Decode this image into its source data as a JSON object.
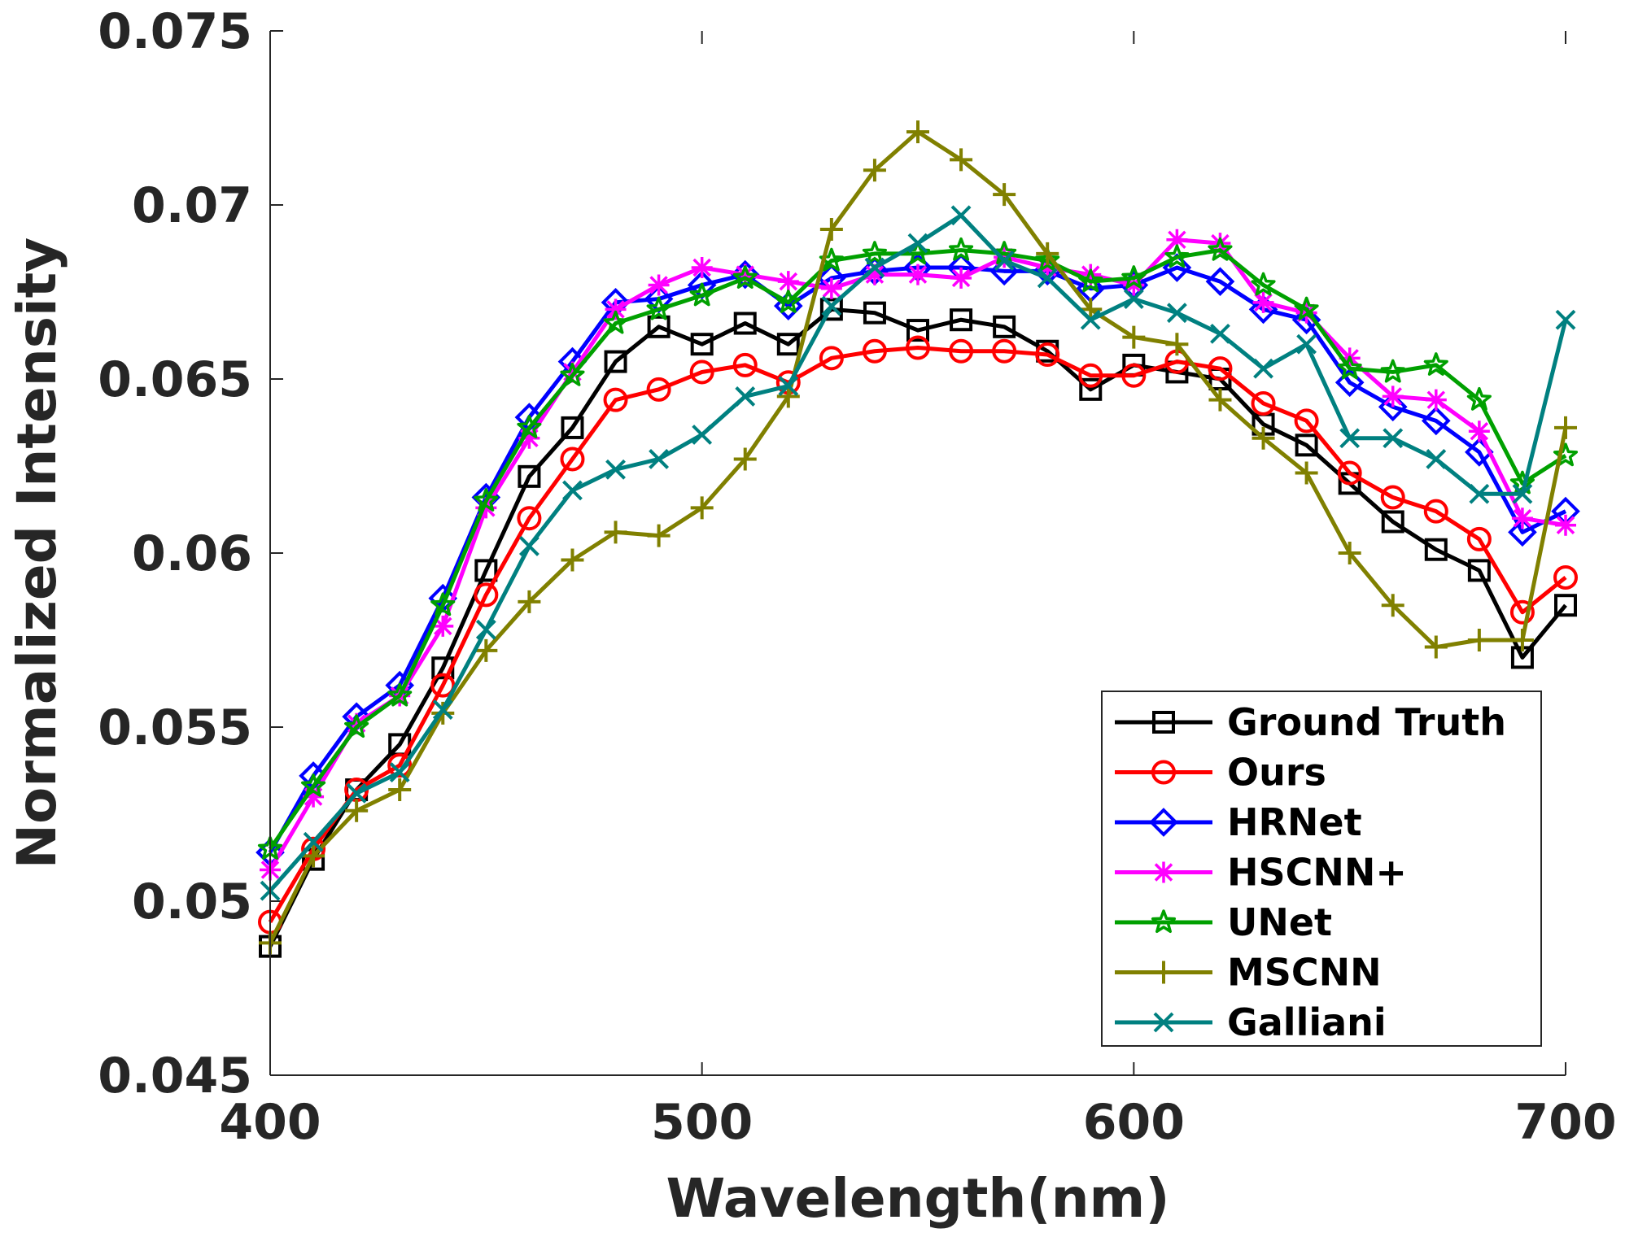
{
  "chart_data": {
    "type": "line",
    "title": "",
    "xlabel": "Wavelength(nm)",
    "ylabel": "Normalized Intensity",
    "xlim": [
      400,
      700
    ],
    "ylim": [
      0.045,
      0.075
    ],
    "xticks": [
      400,
      500,
      600,
      700
    ],
    "xtick_labels": [
      "400",
      "500",
      "600",
      "700"
    ],
    "yticks": [
      0.045,
      0.05,
      0.055,
      0.06,
      0.065,
      0.07,
      0.075
    ],
    "ytick_labels": [
      "0.045",
      "0.05",
      "0.055",
      "0.06",
      "0.065",
      "0.07",
      "0.075"
    ],
    "legend_position": "bottom-right",
    "grid": false,
    "x": [
      400,
      410,
      420,
      430,
      440,
      450,
      460,
      470,
      480,
      490,
      500,
      510,
      520,
      530,
      540,
      550,
      560,
      570,
      580,
      590,
      600,
      610,
      620,
      630,
      640,
      650,
      660,
      670,
      680,
      690,
      700
    ],
    "series": [
      {
        "name": "Ground Truth",
        "color": "#000000",
        "marker": "square",
        "values": [
          0.0487,
          0.0512,
          0.0532,
          0.0545,
          0.0567,
          0.0595,
          0.0622,
          0.0636,
          0.0655,
          0.0665,
          0.066,
          0.0666,
          0.066,
          0.067,
          0.0669,
          0.0664,
          0.0667,
          0.0665,
          0.0658,
          0.0647,
          0.0654,
          0.0652,
          0.065,
          0.0637,
          0.0631,
          0.062,
          0.0609,
          0.0601,
          0.0595,
          0.057,
          0.0585
        ]
      },
      {
        "name": "Ours",
        "color": "#ff0000",
        "marker": "circle",
        "values": [
          0.0494,
          0.0515,
          0.0532,
          0.0539,
          0.0562,
          0.0588,
          0.061,
          0.0627,
          0.0644,
          0.0647,
          0.0652,
          0.0654,
          0.0649,
          0.0656,
          0.0658,
          0.0659,
          0.0658,
          0.0658,
          0.0657,
          0.0651,
          0.0651,
          0.0655,
          0.0653,
          0.0643,
          0.0638,
          0.0623,
          0.0616,
          0.0612,
          0.0604,
          0.0583,
          0.0593
        ]
      },
      {
        "name": "HRNet",
        "color": "#0000ff",
        "marker": "diamond",
        "values": [
          0.0514,
          0.0536,
          0.0553,
          0.0562,
          0.0587,
          0.0616,
          0.0639,
          0.0655,
          0.0672,
          0.0673,
          0.0677,
          0.068,
          0.0671,
          0.0679,
          0.0681,
          0.0682,
          0.0682,
          0.0681,
          0.0681,
          0.0676,
          0.0677,
          0.0682,
          0.0678,
          0.067,
          0.0667,
          0.0649,
          0.0642,
          0.0638,
          0.0629,
          0.0606,
          0.0612
        ]
      },
      {
        "name": "HSCNN+",
        "color": "#ff00ff",
        "marker": "asterisk",
        "values": [
          0.0509,
          0.053,
          0.0551,
          0.0559,
          0.0579,
          0.0613,
          0.0633,
          0.0652,
          0.067,
          0.0677,
          0.0682,
          0.068,
          0.0678,
          0.0676,
          0.068,
          0.068,
          0.0679,
          0.0685,
          0.0682,
          0.068,
          0.0677,
          0.069,
          0.0689,
          0.0672,
          0.0669,
          0.0656,
          0.0645,
          0.0644,
          0.0635,
          0.061,
          0.0608
        ]
      },
      {
        "name": "UNet",
        "color": "#00a000",
        "marker": "star",
        "values": [
          0.0515,
          0.0533,
          0.055,
          0.0559,
          0.0585,
          0.0615,
          0.0636,
          0.0651,
          0.0666,
          0.067,
          0.0674,
          0.0679,
          0.0672,
          0.0684,
          0.0686,
          0.0686,
          0.0687,
          0.0686,
          0.0684,
          0.0678,
          0.0679,
          0.0685,
          0.0687,
          0.0677,
          0.067,
          0.0653,
          0.0652,
          0.0654,
          0.0644,
          0.062,
          0.0628
        ]
      },
      {
        "name": "MSCNN",
        "color": "#808000",
        "marker": "plus",
        "values": [
          0.0488,
          0.0513,
          0.0526,
          0.0532,
          0.0554,
          0.0572,
          0.0586,
          0.0598,
          0.0606,
          0.0605,
          0.0613,
          0.0627,
          0.0645,
          0.0693,
          0.071,
          0.0721,
          0.0713,
          0.0703,
          0.0686,
          0.067,
          0.0662,
          0.066,
          0.0644,
          0.0633,
          0.0623,
          0.06,
          0.0585,
          0.0573,
          0.0575,
          0.0575,
          0.0636
        ]
      },
      {
        "name": "Galliani",
        "color": "#008080",
        "marker": "x",
        "values": [
          0.0503,
          0.0517,
          0.0531,
          0.0537,
          0.0555,
          0.0578,
          0.0602,
          0.0618,
          0.0624,
          0.0627,
          0.0634,
          0.0645,
          0.0648,
          0.0671,
          0.0682,
          0.0689,
          0.0697,
          0.0684,
          0.0679,
          0.0667,
          0.0673,
          0.0669,
          0.0663,
          0.0653,
          0.066,
          0.0633,
          0.0633,
          0.0627,
          0.0617,
          0.0617,
          0.0667
        ]
      }
    ]
  }
}
